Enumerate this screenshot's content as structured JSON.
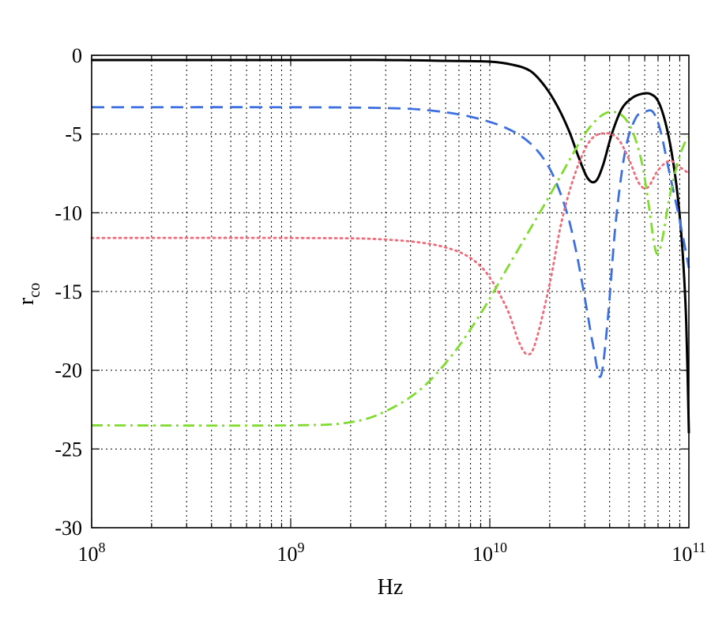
{
  "chart_data": {
    "type": "line",
    "title": "",
    "xlabel": "Hz",
    "ylabel": {
      "main": "r",
      "sub": "co"
    },
    "x_scale": "log",
    "xlim": [
      100000000,
      100000000000
    ],
    "ylim": [
      -30,
      0
    ],
    "grid": true,
    "x_ticks": [
      {
        "value": 100000000,
        "base": "10",
        "exp": "8"
      },
      {
        "value": 1000000000,
        "base": "10",
        "exp": "9"
      },
      {
        "value": 10000000000,
        "base": "10",
        "exp": "10"
      },
      {
        "value": 100000000000,
        "base": "10",
        "exp": "11"
      }
    ],
    "y_ticks": [
      0,
      -5,
      -10,
      -15,
      -20,
      -25,
      -30
    ],
    "series": [
      {
        "color": "#000000",
        "style": "solid",
        "points": [
          [
            100000000,
            -0.3
          ],
          [
            1000000000,
            -0.3
          ],
          [
            3000000000,
            -0.3
          ],
          [
            6000000000,
            -0.35
          ],
          [
            10000000000,
            -0.4
          ],
          [
            13000000000,
            -0.6
          ],
          [
            16000000000,
            -1.0
          ],
          [
            19000000000,
            -2.0
          ],
          [
            22000000000,
            -3.3
          ],
          [
            25000000000,
            -4.8
          ],
          [
            28000000000,
            -6.5
          ],
          [
            31000000000,
            -7.8
          ],
          [
            34000000000,
            -8.0
          ],
          [
            37000000000,
            -7.0
          ],
          [
            41000000000,
            -5.0
          ],
          [
            46000000000,
            -3.4
          ],
          [
            52000000000,
            -2.7
          ],
          [
            58000000000,
            -2.45
          ],
          [
            64000000000,
            -2.45
          ],
          [
            70000000000,
            -2.9
          ],
          [
            76000000000,
            -4.2
          ],
          [
            82000000000,
            -6.2
          ],
          [
            88000000000,
            -9.0
          ],
          [
            93000000000,
            -12.5
          ],
          [
            97000000000,
            -17.0
          ],
          [
            100000000000,
            -24.0
          ]
        ]
      },
      {
        "color": "#3d6fe0",
        "style": "dashed",
        "points": [
          [
            100000000,
            -3.3
          ],
          [
            1000000000,
            -3.3
          ],
          [
            3000000000,
            -3.35
          ],
          [
            5000000000,
            -3.5
          ],
          [
            8000000000,
            -3.9
          ],
          [
            12000000000,
            -4.6
          ],
          [
            16000000000,
            -5.6
          ],
          [
            20000000000,
            -7.2
          ],
          [
            24000000000,
            -9.7
          ],
          [
            27000000000,
            -12.3
          ],
          [
            30000000000,
            -15.4
          ],
          [
            33000000000,
            -18.4
          ],
          [
            36000000000,
            -20.4
          ],
          [
            39000000000,
            -17.0
          ],
          [
            43000000000,
            -10.5
          ],
          [
            48000000000,
            -6.0
          ],
          [
            54000000000,
            -4.0
          ],
          [
            60000000000,
            -3.6
          ],
          [
            66000000000,
            -3.6
          ],
          [
            72000000000,
            -4.8
          ],
          [
            80000000000,
            -7.5
          ],
          [
            90000000000,
            -10.5
          ],
          [
            100000000000,
            -13.5
          ]
        ]
      },
      {
        "color": "#f06a7a",
        "style": "dotted",
        "points": [
          [
            100000000,
            -11.6
          ],
          [
            1000000000,
            -11.6
          ],
          [
            3000000000,
            -11.7
          ],
          [
            6000000000,
            -12.2
          ],
          [
            9000000000,
            -13.4
          ],
          [
            12000000000,
            -15.9
          ],
          [
            14000000000,
            -18.2
          ],
          [
            15500000000,
            -19.0
          ],
          [
            17000000000,
            -18.2
          ],
          [
            20000000000,
            -14.5
          ],
          [
            23000000000,
            -10.5
          ],
          [
            27000000000,
            -7.4
          ],
          [
            32000000000,
            -5.4
          ],
          [
            38000000000,
            -4.95
          ],
          [
            44000000000,
            -5.3
          ],
          [
            50000000000,
            -6.6
          ],
          [
            56000000000,
            -8.1
          ],
          [
            62000000000,
            -8.4
          ],
          [
            70000000000,
            -7.3
          ],
          [
            80000000000,
            -6.7
          ],
          [
            90000000000,
            -7.1
          ],
          [
            100000000000,
            -7.5
          ]
        ]
      },
      {
        "color": "#7fdc2e",
        "style": "dashdot",
        "points": [
          [
            100000000,
            -23.5
          ],
          [
            1000000000,
            -23.5
          ],
          [
            2000000000,
            -23.3
          ],
          [
            3000000000,
            -22.6
          ],
          [
            4500000000,
            -21.2
          ],
          [
            6500000000,
            -19.0
          ],
          [
            9000000000,
            -16.4
          ],
          [
            12000000000,
            -13.7
          ],
          [
            16000000000,
            -11.0
          ],
          [
            20000000000,
            -8.9
          ],
          [
            25000000000,
            -6.7
          ],
          [
            30000000000,
            -5.0
          ],
          [
            35000000000,
            -4.0
          ],
          [
            40000000000,
            -3.6
          ],
          [
            46000000000,
            -3.8
          ],
          [
            52000000000,
            -4.8
          ],
          [
            58000000000,
            -6.8
          ],
          [
            63000000000,
            -9.6
          ],
          [
            67000000000,
            -12.0
          ],
          [
            70000000000,
            -12.6
          ],
          [
            74000000000,
            -11.5
          ],
          [
            80000000000,
            -9.0
          ],
          [
            88000000000,
            -6.8
          ],
          [
            95000000000,
            -5.6
          ],
          [
            100000000000,
            -5.2
          ]
        ]
      }
    ]
  }
}
